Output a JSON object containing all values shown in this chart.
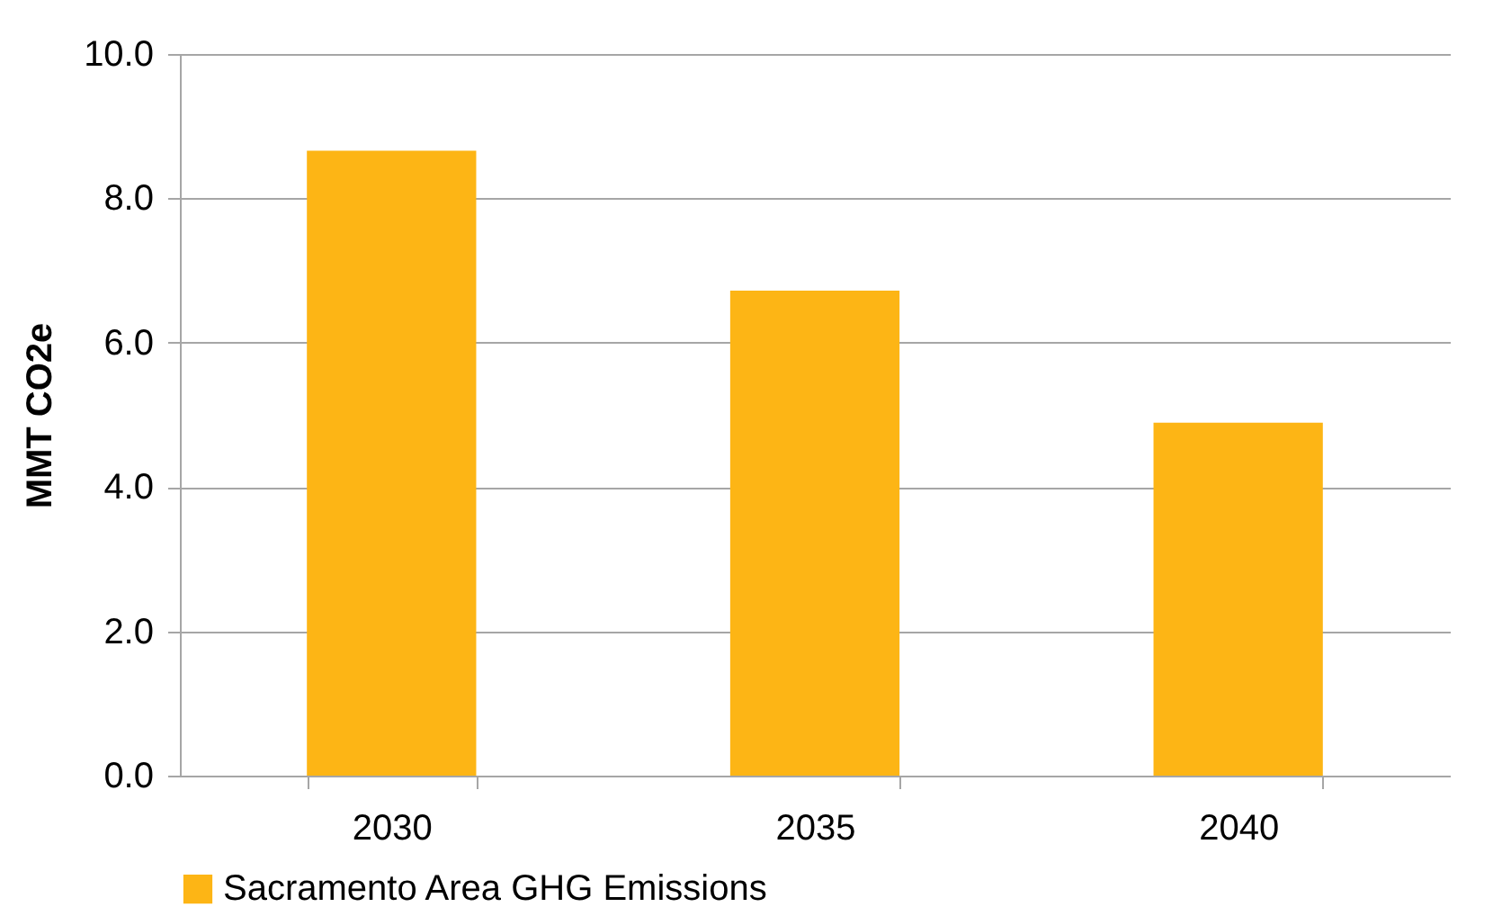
{
  "chart_data": {
    "type": "bar",
    "ylabel": "MMT CO2e",
    "categories": [
      "2030",
      "2035",
      "2040"
    ],
    "series": [
      {
        "name": "Sacramento Area GHG Emissions",
        "color": "#fdb515",
        "values": [
          8.66,
          6.72,
          4.89
        ]
      }
    ],
    "ylim": [
      0,
      10
    ],
    "yticks": [
      {
        "value": 0,
        "label": "0.0"
      },
      {
        "value": 2,
        "label": "2.0"
      },
      {
        "value": 4,
        "label": "4.0"
      },
      {
        "value": 6,
        "label": "6.0"
      },
      {
        "value": 8,
        "label": "8.0"
      },
      {
        "value": 10,
        "label": "10.0"
      }
    ],
    "grid": "y",
    "legend": "bottom"
  }
}
